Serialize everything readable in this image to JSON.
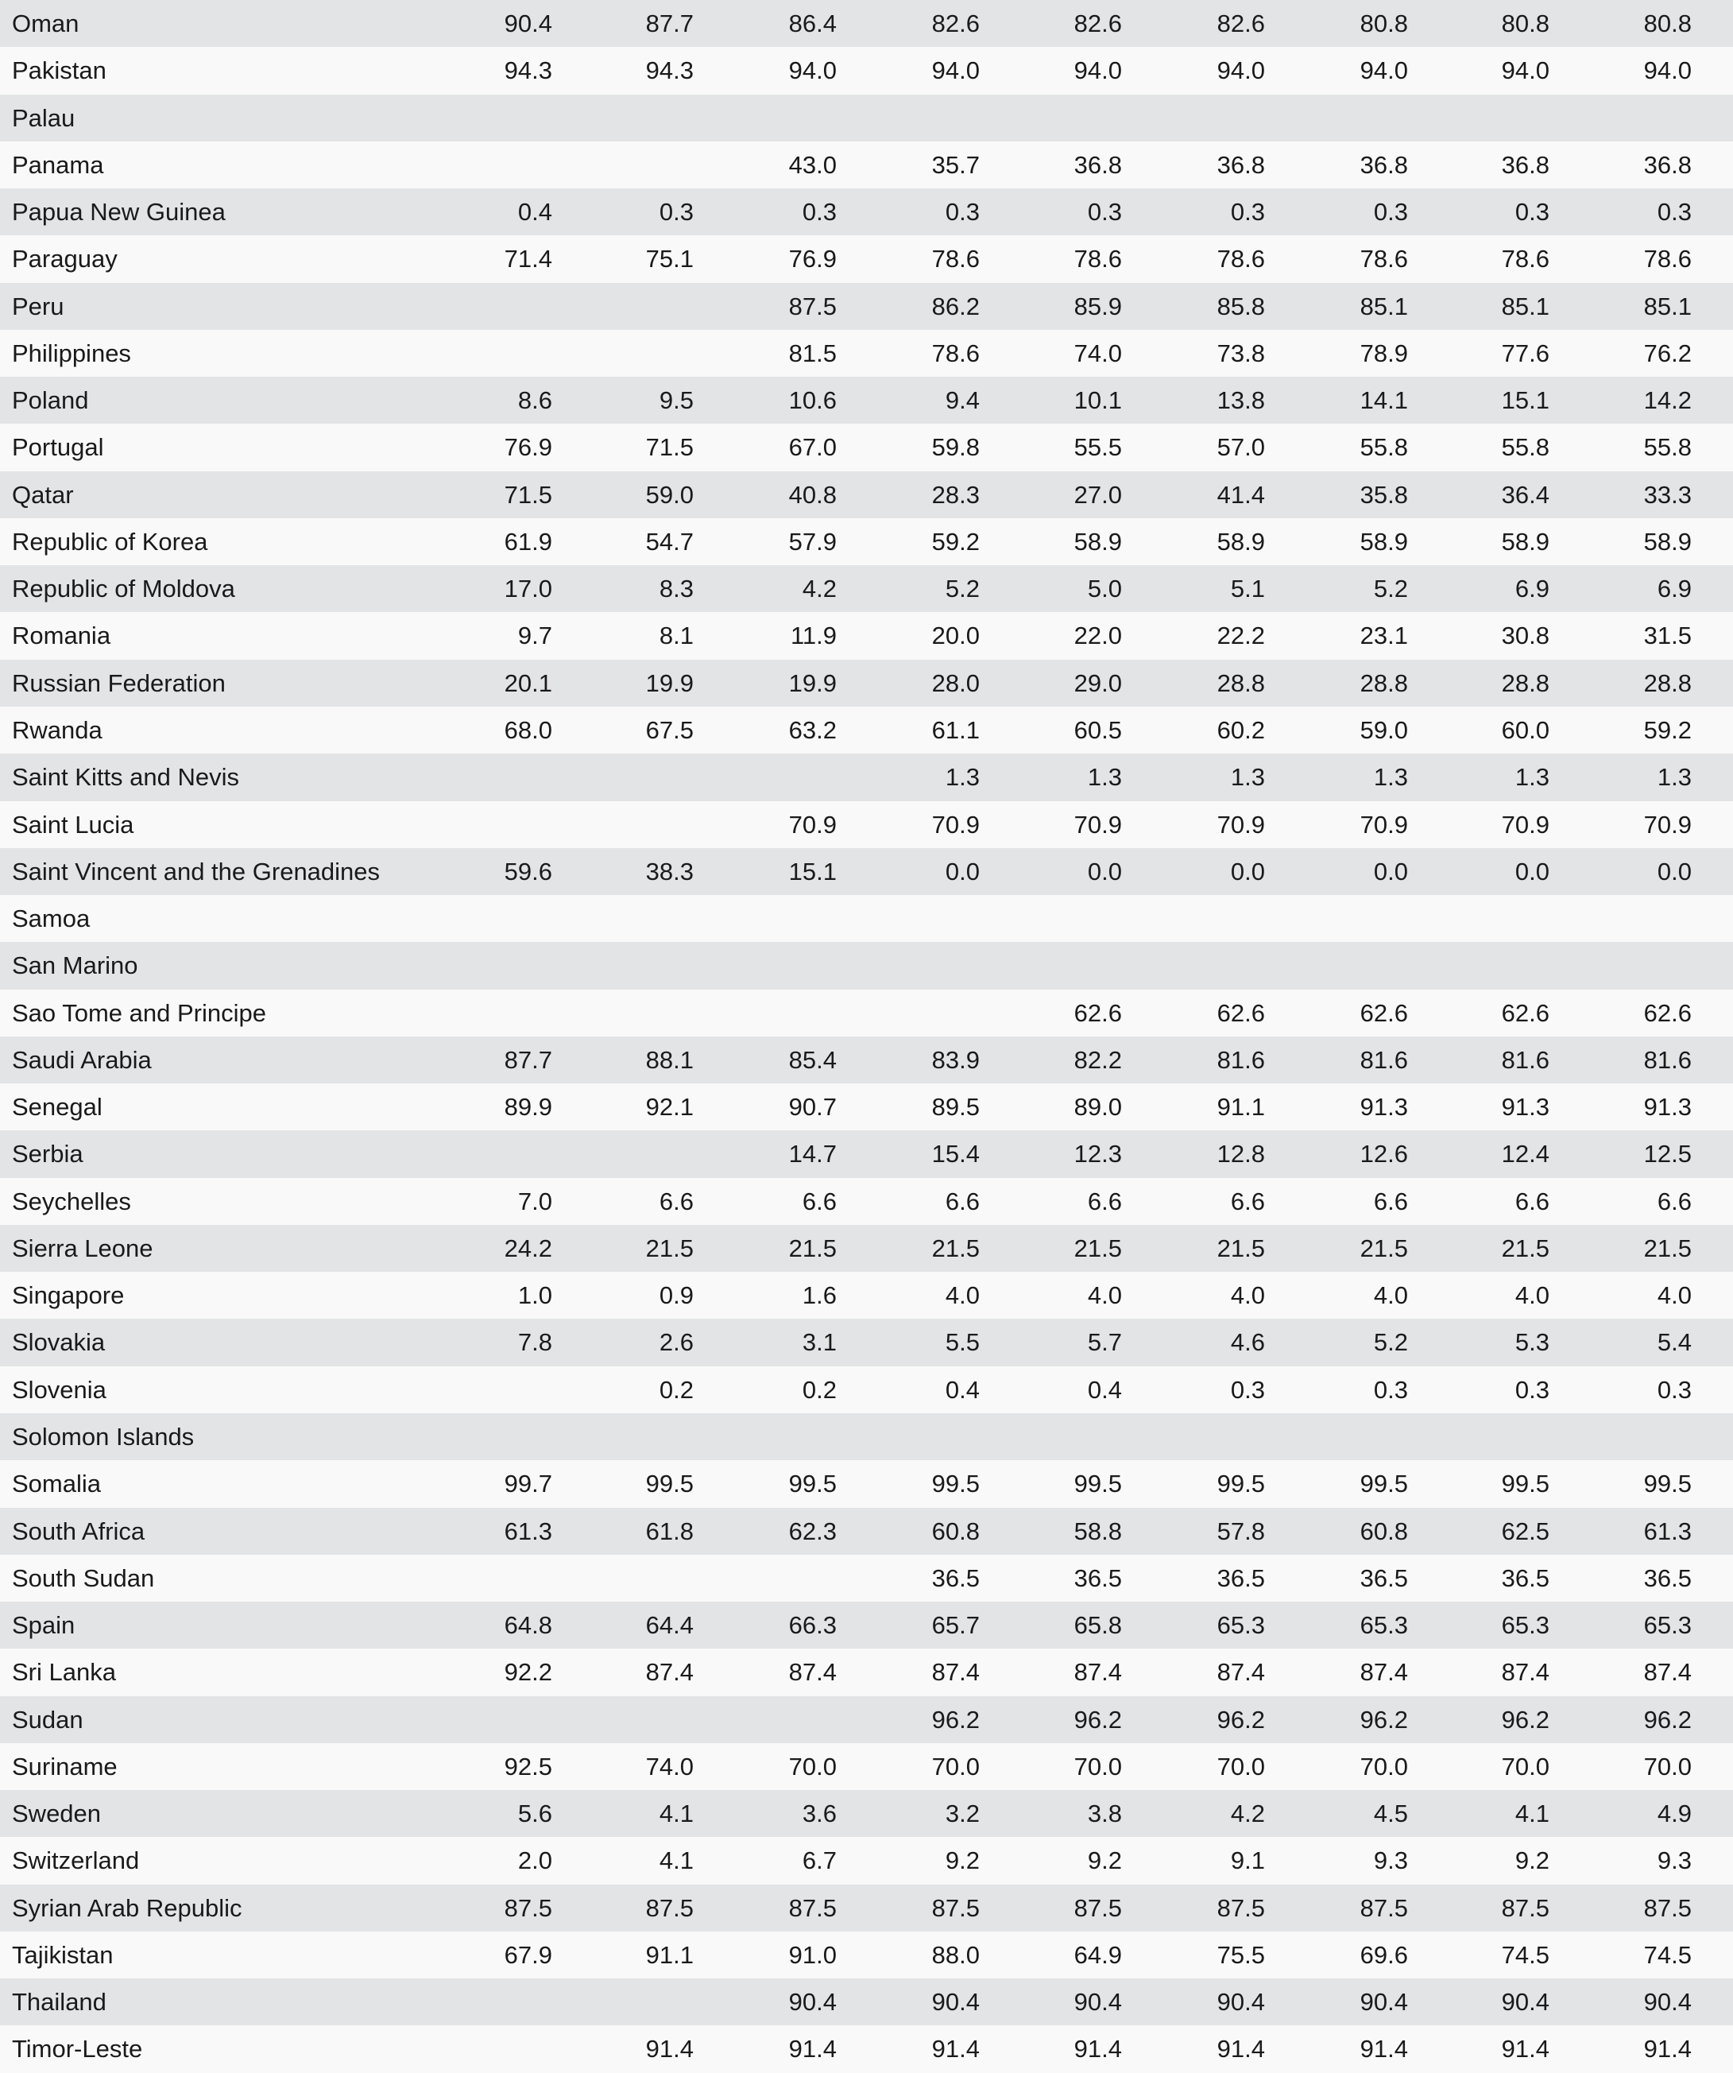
{
  "rows": [
    {
      "country": "Oman",
      "values": [
        "90.4",
        "87.7",
        "86.4",
        "82.6",
        "82.6",
        "82.6",
        "80.8",
        "80.8",
        "80.8"
      ]
    },
    {
      "country": "Pakistan",
      "values": [
        "94.3",
        "94.3",
        "94.0",
        "94.0",
        "94.0",
        "94.0",
        "94.0",
        "94.0",
        "94.0"
      ]
    },
    {
      "country": "Palau",
      "values": [
        "",
        "",
        "",
        "",
        "",
        "",
        "",
        "",
        ""
      ]
    },
    {
      "country": "Panama",
      "values": [
        "",
        "",
        "43.0",
        "35.7",
        "36.8",
        "36.8",
        "36.8",
        "36.8",
        "36.8"
      ]
    },
    {
      "country": "Papua New Guinea",
      "values": [
        "0.4",
        "0.3",
        "0.3",
        "0.3",
        "0.3",
        "0.3",
        "0.3",
        "0.3",
        "0.3"
      ]
    },
    {
      "country": "Paraguay",
      "values": [
        "71.4",
        "75.1",
        "76.9",
        "78.6",
        "78.6",
        "78.6",
        "78.6",
        "78.6",
        "78.6"
      ]
    },
    {
      "country": "Peru",
      "values": [
        "",
        "",
        "87.5",
        "86.2",
        "85.9",
        "85.8",
        "85.1",
        "85.1",
        "85.1"
      ]
    },
    {
      "country": "Philippines",
      "values": [
        "",
        "",
        "81.5",
        "78.6",
        "74.0",
        "73.8",
        "78.9",
        "77.6",
        "76.2"
      ]
    },
    {
      "country": "Poland",
      "values": [
        "8.6",
        "9.5",
        "10.6",
        "9.4",
        "10.1",
        "13.8",
        "14.1",
        "15.1",
        "14.2"
      ]
    },
    {
      "country": "Portugal",
      "values": [
        "76.9",
        "71.5",
        "67.0",
        "59.8",
        "55.5",
        "57.0",
        "55.8",
        "55.8",
        "55.8"
      ]
    },
    {
      "country": "Qatar",
      "values": [
        "71.5",
        "59.0",
        "40.8",
        "28.3",
        "27.0",
        "41.4",
        "35.8",
        "36.4",
        "33.3"
      ]
    },
    {
      "country": "Republic of Korea",
      "values": [
        "61.9",
        "54.7",
        "57.9",
        "59.2",
        "58.9",
        "58.9",
        "58.9",
        "58.9",
        "58.9"
      ]
    },
    {
      "country": "Republic of Moldova",
      "values": [
        "17.0",
        "8.3",
        "4.2",
        "5.2",
        "5.0",
        "5.1",
        "5.2",
        "6.9",
        "6.9"
      ]
    },
    {
      "country": "Romania",
      "values": [
        "9.7",
        "8.1",
        "11.9",
        "20.0",
        "22.0",
        "22.2",
        "23.1",
        "30.8",
        "31.5"
      ]
    },
    {
      "country": "Russian Federation",
      "values": [
        "20.1",
        "19.9",
        "19.9",
        "28.0",
        "29.0",
        "28.8",
        "28.8",
        "28.8",
        "28.8"
      ]
    },
    {
      "country": "Rwanda",
      "values": [
        "68.0",
        "67.5",
        "63.2",
        "61.1",
        "60.5",
        "60.2",
        "59.0",
        "60.0",
        "59.2"
      ]
    },
    {
      "country": "Saint Kitts and Nevis",
      "values": [
        "",
        "",
        "",
        "1.3",
        "1.3",
        "1.3",
        "1.3",
        "1.3",
        "1.3"
      ]
    },
    {
      "country": "Saint Lucia",
      "values": [
        "",
        "",
        "70.9",
        "70.9",
        "70.9",
        "70.9",
        "70.9",
        "70.9",
        "70.9"
      ]
    },
    {
      "country": "Saint Vincent and the Grenadines",
      "values": [
        "59.6",
        "38.3",
        "15.1",
        "0.0",
        "0.0",
        "0.0",
        "0.0",
        "0.0",
        "0.0"
      ]
    },
    {
      "country": "Samoa",
      "values": [
        "",
        "",
        "",
        "",
        "",
        "",
        "",
        "",
        ""
      ]
    },
    {
      "country": "San Marino",
      "values": [
        "",
        "",
        "",
        "",
        "",
        "",
        "",
        "",
        ""
      ]
    },
    {
      "country": "Sao Tome and Principe",
      "values": [
        "",
        "",
        "",
        "",
        "62.6",
        "62.6",
        "62.6",
        "62.6",
        "62.6"
      ]
    },
    {
      "country": "Saudi Arabia",
      "values": [
        "87.7",
        "88.1",
        "85.4",
        "83.9",
        "82.2",
        "81.6",
        "81.6",
        "81.6",
        "81.6"
      ]
    },
    {
      "country": "Senegal",
      "values": [
        "89.9",
        "92.1",
        "90.7",
        "89.5",
        "89.0",
        "91.1",
        "91.3",
        "91.3",
        "91.3"
      ]
    },
    {
      "country": "Serbia",
      "values": [
        "",
        "",
        "14.7",
        "15.4",
        "12.3",
        "12.8",
        "12.6",
        "12.4",
        "12.5"
      ]
    },
    {
      "country": "Seychelles",
      "values": [
        "7.0",
        "6.6",
        "6.6",
        "6.6",
        "6.6",
        "6.6",
        "6.6",
        "6.6",
        "6.6"
      ]
    },
    {
      "country": "Sierra Leone",
      "values": [
        "24.2",
        "21.5",
        "21.5",
        "21.5",
        "21.5",
        "21.5",
        "21.5",
        "21.5",
        "21.5"
      ]
    },
    {
      "country": "Singapore",
      "values": [
        "1.0",
        "0.9",
        "1.6",
        "4.0",
        "4.0",
        "4.0",
        "4.0",
        "4.0",
        "4.0"
      ]
    },
    {
      "country": "Slovakia",
      "values": [
        "7.8",
        "2.6",
        "3.1",
        "5.5",
        "5.7",
        "4.6",
        "5.2",
        "5.3",
        "5.4"
      ]
    },
    {
      "country": "Slovenia",
      "values": [
        "",
        "0.2",
        "0.2",
        "0.4",
        "0.4",
        "0.3",
        "0.3",
        "0.3",
        "0.3"
      ]
    },
    {
      "country": "Solomon Islands",
      "values": [
        "",
        "",
        "",
        "",
        "",
        "",
        "",
        "",
        ""
      ]
    },
    {
      "country": "Somalia",
      "values": [
        "99.7",
        "99.5",
        "99.5",
        "99.5",
        "99.5",
        "99.5",
        "99.5",
        "99.5",
        "99.5"
      ]
    },
    {
      "country": "South Africa",
      "values": [
        "61.3",
        "61.8",
        "62.3",
        "60.8",
        "58.8",
        "57.8",
        "60.8",
        "62.5",
        "61.3"
      ]
    },
    {
      "country": "South Sudan",
      "values": [
        "",
        "",
        "",
        "36.5",
        "36.5",
        "36.5",
        "36.5",
        "36.5",
        "36.5"
      ]
    },
    {
      "country": "Spain",
      "values": [
        "64.8",
        "64.4",
        "66.3",
        "65.7",
        "65.8",
        "65.3",
        "65.3",
        "65.3",
        "65.3"
      ]
    },
    {
      "country": "Sri Lanka",
      "values": [
        "92.2",
        "87.4",
        "87.4",
        "87.4",
        "87.4",
        "87.4",
        "87.4",
        "87.4",
        "87.4"
      ]
    },
    {
      "country": "Sudan",
      "values": [
        "",
        "",
        "",
        "96.2",
        "96.2",
        "96.2",
        "96.2",
        "96.2",
        "96.2"
      ]
    },
    {
      "country": "Suriname",
      "values": [
        "92.5",
        "74.0",
        "70.0",
        "70.0",
        "70.0",
        "70.0",
        "70.0",
        "70.0",
        "70.0"
      ]
    },
    {
      "country": "Sweden",
      "values": [
        "5.6",
        "4.1",
        "3.6",
        "3.2",
        "3.8",
        "4.2",
        "4.5",
        "4.1",
        "4.9"
      ]
    },
    {
      "country": "Switzerland",
      "values": [
        "2.0",
        "4.1",
        "6.7",
        "9.2",
        "9.2",
        "9.1",
        "9.3",
        "9.2",
        "9.3"
      ]
    },
    {
      "country": "Syrian Arab Republic",
      "values": [
        "87.5",
        "87.5",
        "87.5",
        "87.5",
        "87.5",
        "87.5",
        "87.5",
        "87.5",
        "87.5"
      ]
    },
    {
      "country": "Tajikistan",
      "values": [
        "67.9",
        "91.1",
        "91.0",
        "88.0",
        "64.9",
        "75.5",
        "69.6",
        "74.5",
        "74.5"
      ]
    },
    {
      "country": "Thailand",
      "values": [
        "",
        "",
        "90.4",
        "90.4",
        "90.4",
        "90.4",
        "90.4",
        "90.4",
        "90.4"
      ]
    },
    {
      "country": "Timor-Leste",
      "values": [
        "",
        "91.4",
        "91.4",
        "91.4",
        "91.4",
        "91.4",
        "91.4",
        "91.4",
        "91.4"
      ]
    }
  ]
}
